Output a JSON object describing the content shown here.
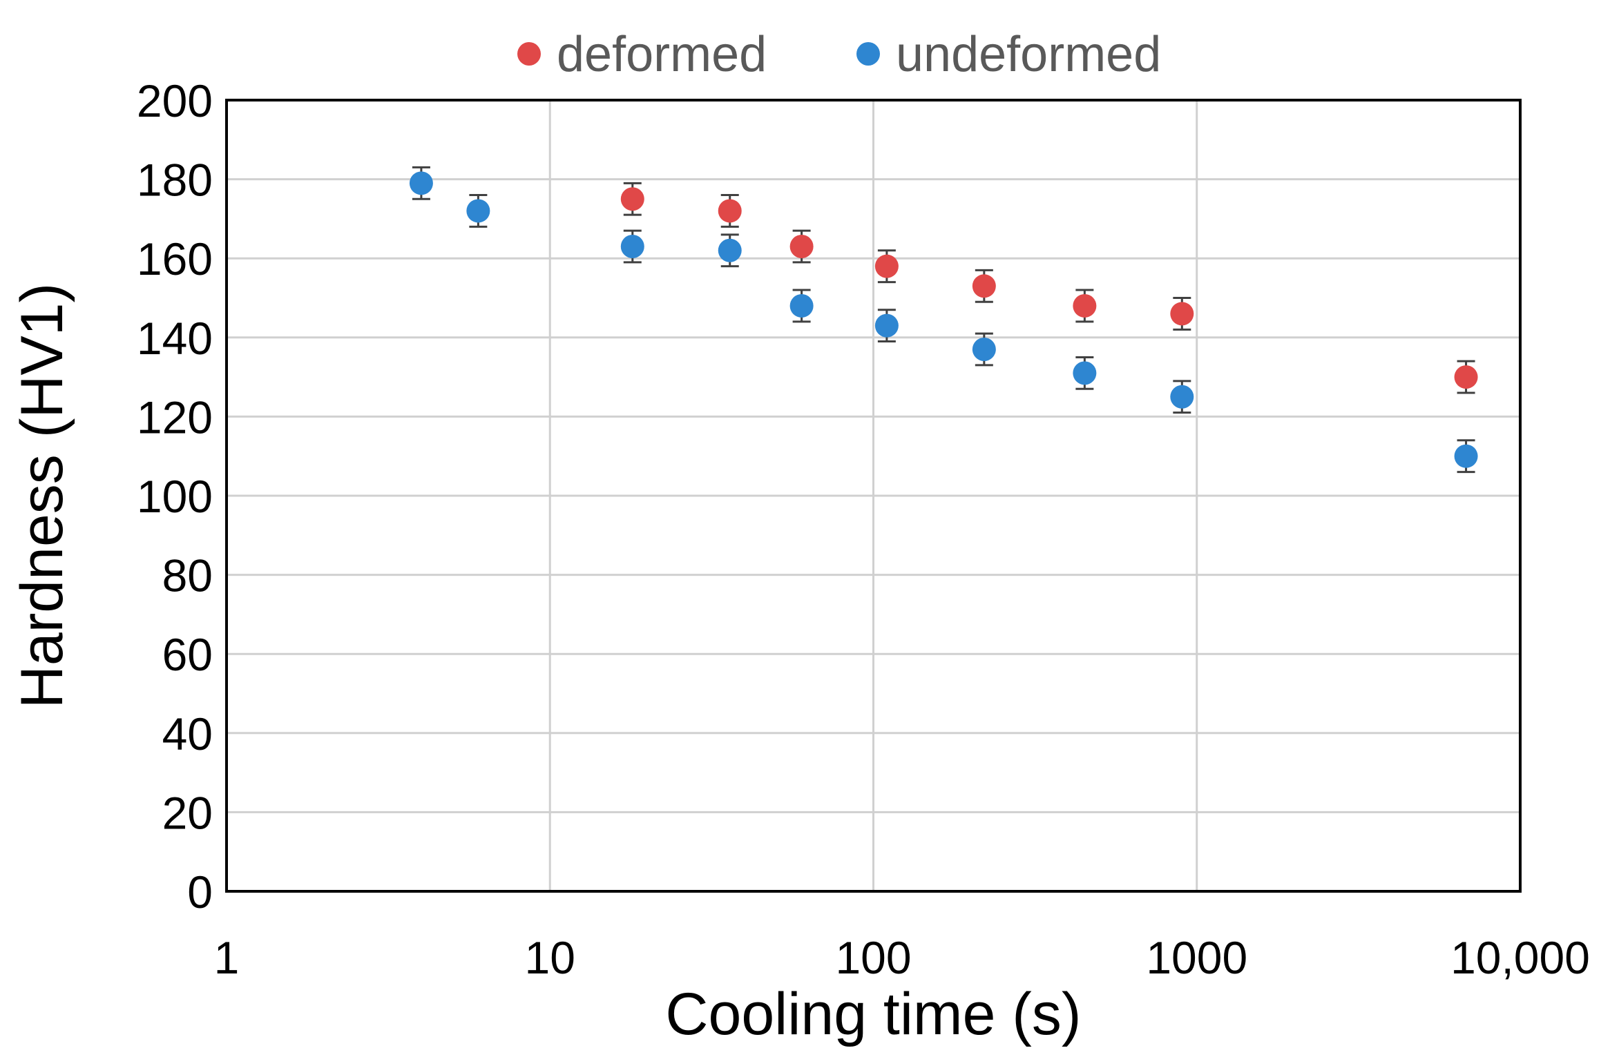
{
  "chart_data": {
    "type": "scatter",
    "x_scale": "log",
    "xlabel": "Cooling time (s)",
    "ylabel": "Hardness (HV1)",
    "xlim": [
      1,
      10000
    ],
    "ylim": [
      0,
      200
    ],
    "x_ticks": [
      {
        "value": 1,
        "label": "1"
      },
      {
        "value": 10,
        "label": "10"
      },
      {
        "value": 100,
        "label": "100"
      },
      {
        "value": 1000,
        "label": "1000"
      },
      {
        "value": 10000,
        "label": "10,000"
      }
    ],
    "y_ticks": [
      {
        "value": 0,
        "label": "0"
      },
      {
        "value": 20,
        "label": "20"
      },
      {
        "value": 40,
        "label": "40"
      },
      {
        "value": 60,
        "label": "60"
      },
      {
        "value": 80,
        "label": "80"
      },
      {
        "value": 100,
        "label": "100"
      },
      {
        "value": 120,
        "label": "120"
      },
      {
        "value": 140,
        "label": "140"
      },
      {
        "value": 160,
        "label": "160"
      },
      {
        "value": 180,
        "label": "180"
      },
      {
        "value": 200,
        "label": "200"
      }
    ],
    "grid": true,
    "legend_position": "top",
    "series": [
      {
        "name": "deformed",
        "color": "#E04848",
        "points": [
          {
            "x": 18,
            "y": 175,
            "err": 4
          },
          {
            "x": 36,
            "y": 172,
            "err": 4
          },
          {
            "x": 60,
            "y": 163,
            "err": 4
          },
          {
            "x": 110,
            "y": 158,
            "err": 4
          },
          {
            "x": 220,
            "y": 153,
            "err": 4
          },
          {
            "x": 450,
            "y": 148,
            "err": 4
          },
          {
            "x": 900,
            "y": 146,
            "err": 4
          },
          {
            "x": 6800,
            "y": 130,
            "err": 4
          }
        ]
      },
      {
        "name": "undeformed",
        "color": "#2E86D1",
        "points": [
          {
            "x": 4,
            "y": 179,
            "err": 4
          },
          {
            "x": 6,
            "y": 172,
            "err": 4
          },
          {
            "x": 18,
            "y": 163,
            "err": 4
          },
          {
            "x": 36,
            "y": 162,
            "err": 4
          },
          {
            "x": 60,
            "y": 148,
            "err": 4
          },
          {
            "x": 110,
            "y": 143,
            "err": 4
          },
          {
            "x": 220,
            "y": 137,
            "err": 4
          },
          {
            "x": 450,
            "y": 131,
            "err": 4
          },
          {
            "x": 900,
            "y": 125,
            "err": 4
          },
          {
            "x": 6800,
            "y": 110,
            "err": 4
          }
        ]
      }
    ]
  }
}
